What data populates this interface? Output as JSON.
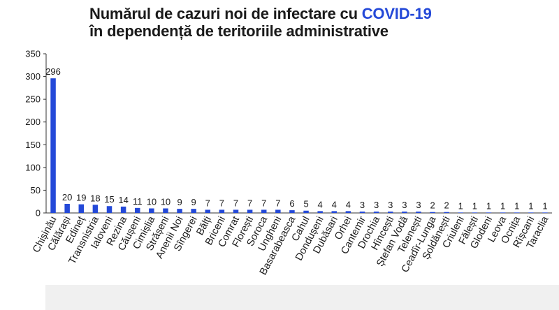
{
  "colors": {
    "bar": "#2449d8",
    "accent": "#2449d8",
    "text": "#1a1a1a"
  },
  "chart_data": {
    "type": "bar",
    "title": {
      "line1_prefix": "Numărul de cazuri noi de infectare cu ",
      "line1_accent": "COVID-19",
      "line2": "în dependență de teritoriile administrative"
    },
    "xlabel": "",
    "ylabel": "",
    "ylim": [
      0,
      350
    ],
    "yticks": [
      "0",
      "50",
      "100",
      "150",
      "200",
      "250",
      "300",
      "350"
    ],
    "grid": false,
    "legend": "none",
    "categories": [
      "Chișinău",
      "Călărași",
      "Edineț",
      "Transnistria",
      "Ialoveni",
      "Rezina",
      "Căușeni",
      "Cimișlia",
      "Strășeni",
      "Anenii Noi",
      "Sîngerei",
      "Bălți",
      "Briceni",
      "Comrat",
      "Florești",
      "Soroca",
      "Ungheni",
      "Basarabeasca",
      "Cahul",
      "Dondușeni",
      "Dubăsari",
      "Orhei",
      "Cantemir",
      "Drochia",
      "Hîncești",
      "Ștefan Vodă",
      "Telenești",
      "Ceadîr-Lunga",
      "Șoldănești",
      "Criuleni",
      "Fălești",
      "Glodeni",
      "Leova",
      "Ocnița",
      "Rîșcani",
      "Taraclia"
    ],
    "values": [
      296,
      20,
      19,
      18,
      15,
      14,
      11,
      10,
      10,
      9,
      9,
      7,
      7,
      7,
      7,
      7,
      7,
      6,
      5,
      4,
      4,
      4,
      3,
      3,
      3,
      3,
      3,
      2,
      2,
      1,
      1,
      1,
      1,
      1,
      1,
      1
    ]
  }
}
